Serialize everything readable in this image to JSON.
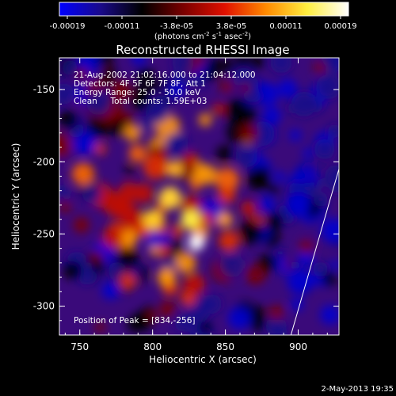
{
  "colorbar": {
    "tick_labels": [
      "-0.00019",
      "-0.00011",
      "-3.8e-05",
      "3.8e-05",
      "0.00011",
      "0.00019"
    ],
    "unit_label": "(photons cm",
    "unit_exp1": "-2",
    "unit_mid": " s",
    "unit_exp2": "-1",
    "unit_end": " asec",
    "unit_exp3": "-2",
    "unit_close": ")",
    "range": [
      -0.00019,
      0.00019
    ],
    "colormap": [
      "#0000ff",
      "#1a0a8a",
      "#000000",
      "#7a0000",
      "#e01000",
      "#ff8a00",
      "#ffee40",
      "#ffffff"
    ]
  },
  "plot": {
    "title": "Reconstructed RHESSI Image",
    "xlabel": "Heliocentric X (arcsec)",
    "ylabel": "Heliocentric Y (arcsec)",
    "info_lines": [
      "21-Aug-2002 21:02:16.000 to 21:04:12.000",
      "Detectors: 4F 5F 6F 7F 8F, Att 1",
      "Energy Range: 25.0 - 50.0 keV",
      "Clean     Total counts: 1.59E+03"
    ],
    "peak_label": "Position of Peak = [834,-256]",
    "footer_date": "2-May-2013 19:35"
  },
  "chart_data": {
    "type": "heatmap",
    "title": "Reconstructed RHESSI Image",
    "xlabel": "Heliocentric X (arcsec)",
    "ylabel": "Heliocentric Y (arcsec)",
    "xlim": [
      736,
      928
    ],
    "ylim": [
      -320,
      -128
    ],
    "x_ticks": [
      750,
      800,
      850,
      900
    ],
    "y_ticks": [
      -300,
      -250,
      -200,
      -150
    ],
    "x_tick_labels": [
      "750",
      "800",
      "850",
      "900"
    ],
    "y_tick_labels": [
      "-300",
      "-250",
      "-200",
      "-150"
    ],
    "peak_position": [
      834,
      -256
    ],
    "value_range": [
      -0.00019,
      0.00019
    ],
    "limb_line": [
      [
        895,
        -320
      ],
      [
        928,
        -205
      ]
    ]
  }
}
